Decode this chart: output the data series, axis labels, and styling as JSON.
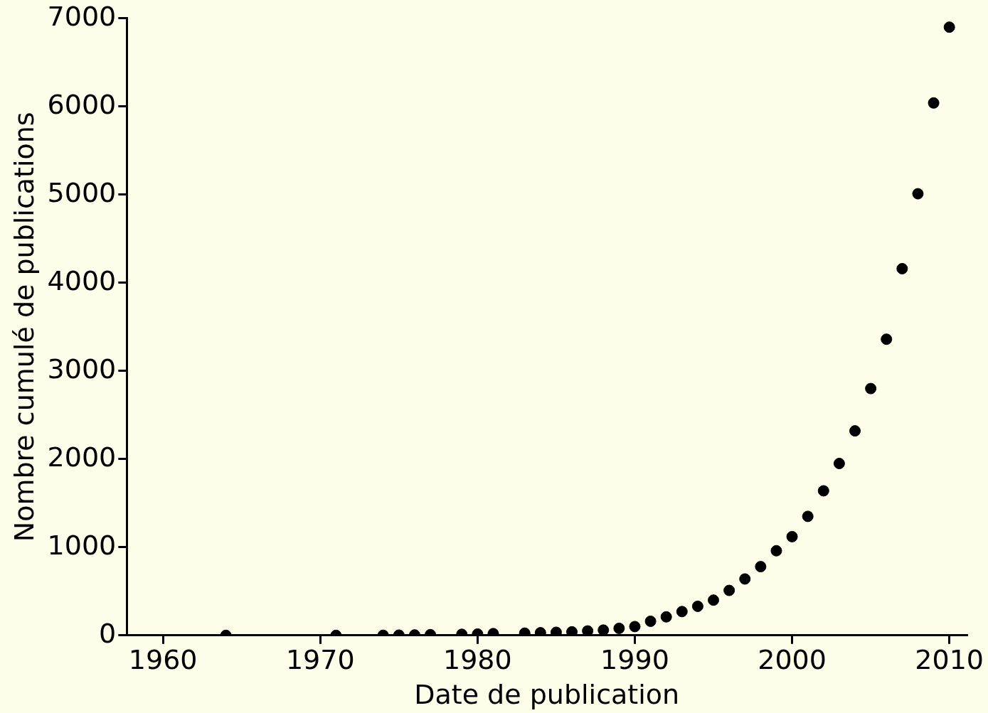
{
  "chart_data": {
    "type": "scatter",
    "xlabel": "Date de publication",
    "ylabel": "Nombre cumulé de publications",
    "x": [
      1964,
      1971,
      1974,
      1975,
      1976,
      1977,
      1979,
      1980,
      1981,
      1983,
      1984,
      1985,
      1986,
      1987,
      1988,
      1989,
      1990,
      1991,
      1992,
      1993,
      1994,
      1995,
      1996,
      1997,
      1998,
      1999,
      2000,
      2001,
      2002,
      2003,
      2004,
      2005,
      2006,
      2007,
      2008,
      2009,
      2010
    ],
    "series": [
      {
        "color": "#000000",
        "values": [
          0,
          0,
          1,
          3,
          5,
          8,
          12,
          15,
          20,
          25,
          30,
          35,
          40,
          50,
          60,
          80,
          100,
          160,
          210,
          270,
          330,
          400,
          510,
          640,
          780,
          960,
          1120,
          1350,
          1640,
          1950,
          2320,
          2800,
          3360,
          4160,
          5010,
          6040,
          6900
        ]
      }
    ],
    "xlim": [
      1957.7,
      2011.1
    ],
    "xticks": [
      1960,
      1970,
      1980,
      1990,
      2000,
      2010
    ],
    "ylim": [
      0,
      7000
    ],
    "yticks": [
      0,
      1000,
      2000,
      3000,
      4000,
      5000,
      6000,
      7000
    ],
    "grid": false,
    "legend": false,
    "marker": "circle"
  }
}
